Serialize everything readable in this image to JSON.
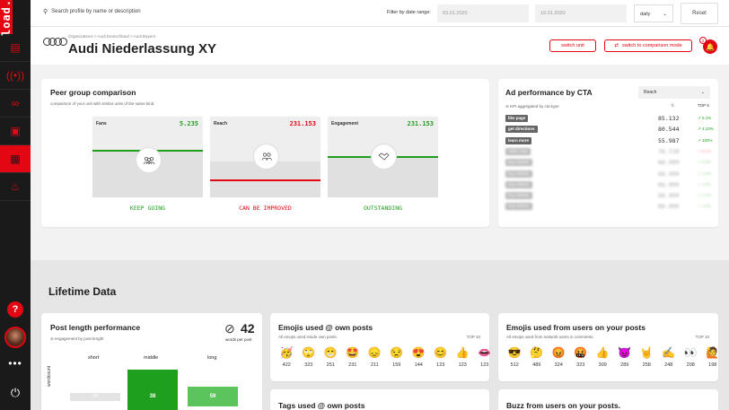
{
  "app": {
    "logo": "load.",
    "nav_icons": [
      "chart-icon",
      "signal-icon",
      "link-icon",
      "bag-icon",
      "filmstrip-icon",
      "fire-icon"
    ],
    "help_glyph": "?",
    "more_glyph": "•••",
    "logout_glyph": "⏻"
  },
  "topbar": {
    "search_placeholder": "Search profile by name or description",
    "filter_label": "Filter by date range:",
    "date_from": "03.01.2020",
    "date_to": "10.01.2020",
    "interval": "daily",
    "reset_label": "Reset"
  },
  "header": {
    "breadcrumb": "Organizations > Audi Deutschland > Audi Bayern",
    "title": "Audi Niederlassung XY",
    "switch_unit_label": "switch unit",
    "comparison_label": "switch to comparison mode",
    "notification_count": "2"
  },
  "peer_group": {
    "title": "Peer group comparison",
    "subtitle": "comparison of your unit with similar units of the same kind",
    "panels": [
      {
        "label": "Fans",
        "value": "5.235",
        "verdict": "KEEP GOING",
        "color": "#1ea01e"
      },
      {
        "label": "Reach",
        "value": "231.153",
        "verdict": "CAN BE IMPROVED",
        "color": "#e30613"
      },
      {
        "label": "Engagement",
        "value": "231.153",
        "verdict": "OUTSTANDING",
        "color": "#1ea01e"
      }
    ]
  },
  "ad_performance": {
    "title": "Ad performance by CTA",
    "dropdown": "Reach",
    "kpi_note": "KPI aggregated by cta-type",
    "col_top": "TOP 5",
    "rows": [
      {
        "tag": "like page",
        "value": "85.132",
        "pct": "5.1%",
        "color": "#1ea01e",
        "blurred": false
      },
      {
        "tag": "get directions",
        "value": "80.544",
        "pct": "4.23%",
        "color": "#1ea01e",
        "blurred": false
      },
      {
        "tag": "learn more",
        "value": "55.987",
        "pct": "100%",
        "color": "#1ea01e",
        "blurred": false
      },
      {
        "tag": "order now",
        "value": "76.720",
        "pct": "8.1%",
        "color": "#e30613",
        "blurred": true
      },
      {
        "tag": "buy tickets",
        "value": "68.999",
        "pct": "1.0%",
        "color": "#1ea01e",
        "blurred": true
      },
      {
        "tag": "buy tickets",
        "value": "68.999",
        "pct": "1.0%",
        "color": "#1ea01e",
        "blurred": true
      },
      {
        "tag": "buy tickets",
        "value": "68.999",
        "pct": "1.0%",
        "color": "#1ea01e",
        "blurred": true
      },
      {
        "tag": "buy tickets",
        "value": "68.999",
        "pct": "1.0%",
        "color": "#1ea01e",
        "blurred": true
      },
      {
        "tag": "buy tickets",
        "value": "68.999",
        "pct": "1.0%",
        "color": "#1ea01e",
        "blurred": true
      }
    ]
  },
  "lifetime": {
    "title": "Lifetime Data"
  },
  "post_length": {
    "title": "Post length performance",
    "subtitle": "engagement by post length",
    "avg_value": "42",
    "avg_label": "words per post",
    "y_label": "wordcount",
    "columns": [
      {
        "label": "short",
        "value": "28"
      },
      {
        "label": "middle",
        "value": "38"
      },
      {
        "label": "long",
        "value": "59"
      }
    ]
  },
  "emojis_own": {
    "title": "Emojis used @ own posts",
    "subtitle": "All emojis used inside own posts.",
    "top_label": "TOP 10",
    "items": [
      {
        "emoji": "🥳",
        "count": "422"
      },
      {
        "emoji": "🙄",
        "count": "323"
      },
      {
        "emoji": "😁",
        "count": "251"
      },
      {
        "emoji": "🤩",
        "count": "231"
      },
      {
        "emoji": "😞",
        "count": "211"
      },
      {
        "emoji": "😒",
        "count": "159"
      },
      {
        "emoji": "😍",
        "count": "144"
      },
      {
        "emoji": "😊",
        "count": "123"
      },
      {
        "emoji": "👍",
        "count": "123"
      },
      {
        "emoji": "👄",
        "count": "123"
      }
    ]
  },
  "emojis_users": {
    "title": "Emojis used from users on your posts",
    "subtitle": "All emojis used from network users in comments.",
    "top_label": "TOP 10",
    "items": [
      {
        "emoji": "😎",
        "count": "512"
      },
      {
        "emoji": "🤔",
        "count": "489"
      },
      {
        "emoji": "😡",
        "count": "324"
      },
      {
        "emoji": "🤬",
        "count": "323"
      },
      {
        "emoji": "👍",
        "count": "309"
      },
      {
        "emoji": "😈",
        "count": "289"
      },
      {
        "emoji": "🤘",
        "count": "258"
      },
      {
        "emoji": "✍",
        "count": "248"
      },
      {
        "emoji": "👀",
        "count": "208"
      },
      {
        "emoji": "🙋",
        "count": "198"
      }
    ]
  },
  "tags_own": {
    "title": "Tags used @ own posts"
  },
  "buzz": {
    "title": "Buzz from users on your posts."
  }
}
